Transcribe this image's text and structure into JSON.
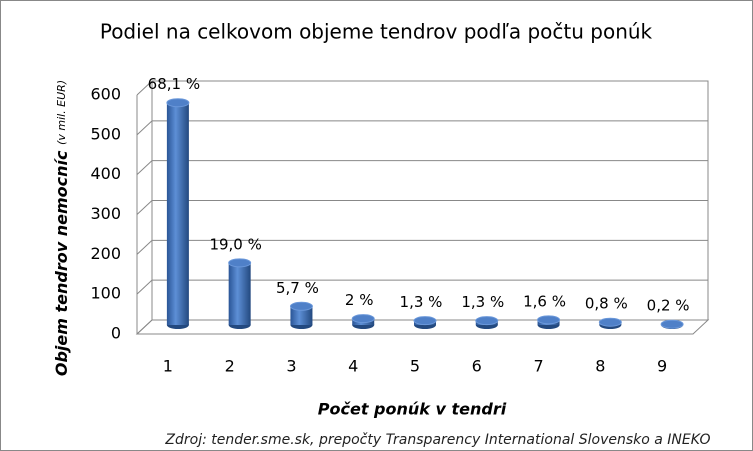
{
  "chart_data": {
    "type": "bar3d",
    "title": "Podiel na celkovom objeme tendrov podľa počtu ponúk",
    "y_label": "Objem tendrov nemocníc",
    "y_label_unit": "(v mil. EUR)",
    "x_label": "Počet ponúk v tendri",
    "source": "Zdroj: tender.sme.sk,  prepočty Transparency International Slovensko a INEKO",
    "categories": [
      "1",
      "2",
      "3",
      "4",
      "5",
      "6",
      "7",
      "8",
      "9"
    ],
    "values": [
      558,
      156,
      47,
      16,
      11,
      11,
      13,
      7,
      2
    ],
    "percent_labels": [
      "68,1 %",
      "19,0 %",
      "5,7 %",
      "2 %",
      "1,3 %",
      "1,3 %",
      "1,6 %",
      "0,8 %",
      "0,2 %"
    ],
    "color": "#3a6fc0",
    "ylim": [
      0,
      600
    ],
    "yticks": [
      0,
      100,
      200,
      300,
      400,
      500,
      600
    ],
    "grid": true
  }
}
